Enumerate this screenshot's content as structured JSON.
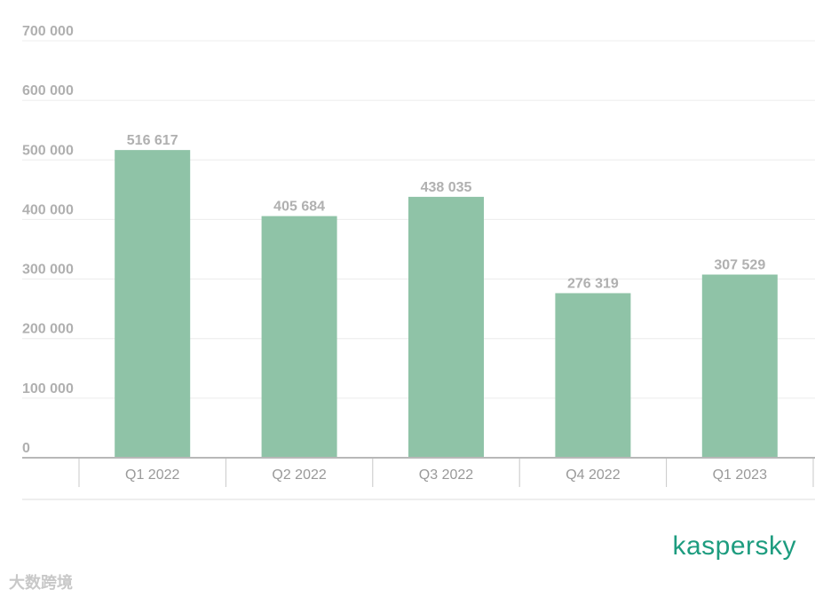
{
  "chart_data": {
    "type": "bar",
    "categories": [
      "Q1 2022",
      "Q2 2022",
      "Q3 2022",
      "Q4 2022",
      "Q1 2023"
    ],
    "values": [
      516617,
      405684,
      438035,
      276319,
      307529
    ],
    "value_labels": [
      "516 617",
      "405 684",
      "438 035",
      "276 319",
      "307 529"
    ],
    "color": "#8fc3a7",
    "ylim": [
      0,
      700000
    ],
    "yticks": [
      {
        "value": 0,
        "label": "0"
      },
      {
        "value": 100000,
        "label": "100 000"
      },
      {
        "value": 200000,
        "label": "200 000"
      },
      {
        "value": 300000,
        "label": "300 000"
      },
      {
        "value": 400000,
        "label": "400 000"
      },
      {
        "value": 500000,
        "label": "500 000"
      },
      {
        "value": 600000,
        "label": "600 000"
      },
      {
        "value": 700000,
        "label": "700 000"
      }
    ],
    "grid": true
  },
  "logo": "kaspersky",
  "watermark": "大数跨境"
}
